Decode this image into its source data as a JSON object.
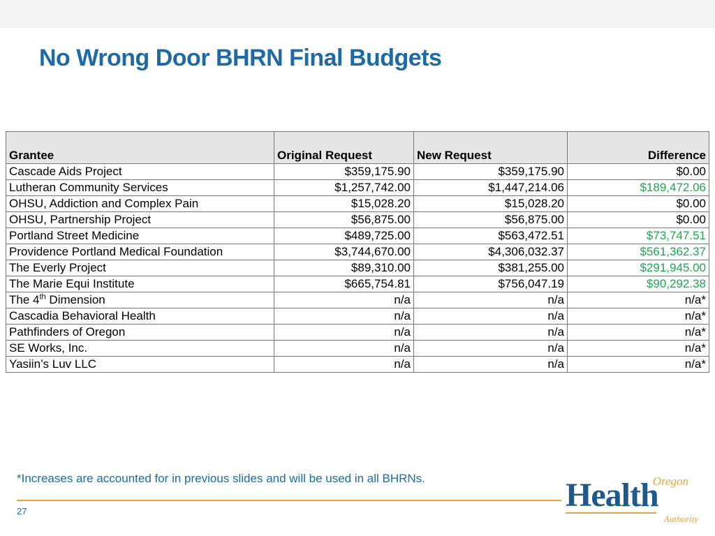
{
  "title": "No Wrong Door BHRN Final Budgets",
  "columns": {
    "grantee": "Grantee",
    "original": "Original Request",
    "new": "New Request",
    "diff": "Difference"
  },
  "rows": [
    {
      "grantee": "Cascade Aids Project",
      "original": "$359,175.90",
      "new": "$359,175.90",
      "diff": "$0.00",
      "green": false
    },
    {
      "grantee": "Lutheran Community Services",
      "original": "$1,257,742.00",
      "new": "$1,447,214.06",
      "diff": "$189,472.06",
      "green": true
    },
    {
      "grantee": "OHSU, Addiction and Complex Pain",
      "original": "$15,028.20",
      "new": "$15,028.20",
      "diff": "$0.00",
      "green": false
    },
    {
      "grantee": "OHSU, Partnership Project",
      "original": "$56,875.00",
      "new": "$56,875.00",
      "diff": "$0.00",
      "green": false
    },
    {
      "grantee": "Portland Street Medicine",
      "original": "$489,725.00",
      "new": "$563,472.51",
      "diff": "$73,747.51",
      "green": true
    },
    {
      "grantee": "Providence Portland Medical Foundation",
      "original": "$3,744,670.00",
      "new": "$4,306,032.37",
      "diff": "$561,362.37",
      "green": true
    },
    {
      "grantee": "The Everly Project",
      "original": "$89,310.00",
      "new": "$381,255.00",
      "diff": "$291,945.00",
      "green": true
    },
    {
      "grantee": "The Marie Equi Institute",
      "original": "$665,754.81",
      "new": "$756,047.19",
      "diff": "$90,292.38",
      "green": true
    },
    {
      "grantee_html": "The 4<sup>th</sup> Dimension",
      "original": "n/a",
      "new": "n/a",
      "diff": "n/a*",
      "green": false
    },
    {
      "grantee": "Cascadia Behavioral Health",
      "original": "n/a",
      "new": "n/a",
      "diff": "n/a*",
      "green": false
    },
    {
      "grantee": "Pathfinders of Oregon",
      "original": "n/a",
      "new": "n/a",
      "diff": "n/a*",
      "green": false
    },
    {
      "grantee": "SE Works, Inc.",
      "original": "n/a",
      "new": "n/a",
      "diff": "n/a*",
      "green": false
    },
    {
      "grantee": "Yasiin’s Luv LLC",
      "original": "n/a",
      "new": "n/a",
      "diff": "n/a*",
      "green": false
    }
  ],
  "footnote": "*Increases are accounted for in previous slides and will be used in all BHRNs.",
  "page_number": "27",
  "logo": {
    "line1": "Oregon",
    "line2": "Health",
    "line3": "Authority"
  },
  "colors": {
    "title": "#1d6aa5",
    "header_bg": "#e6e6e6",
    "border": "#777777",
    "diff_positive": "#1aa84f",
    "accent": "#e8a33d",
    "logo_blue": "#1d5a8a"
  }
}
